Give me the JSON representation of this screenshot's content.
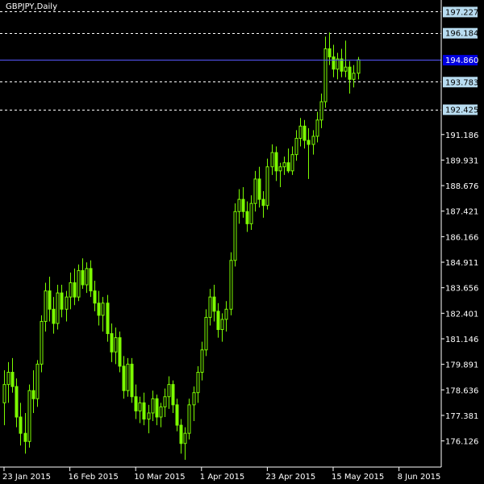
{
  "chart_data": {
    "type": "candlestick",
    "instrument_label": "GBPJPY,Daily",
    "ylim": [
      175.0,
      197.6
    ],
    "y_ticks": [
      "176.126",
      "177.381",
      "178.636",
      "179.891",
      "181.146",
      "182.401",
      "183.656",
      "184.911",
      "186.166",
      "187.421",
      "188.676",
      "189.931",
      "191.186"
    ],
    "x_ticks": [
      {
        "label": "23 Jan 2015",
        "index": 0
      },
      {
        "label": "16 Feb 2015",
        "index": 16
      },
      {
        "label": "10 Mar 2015",
        "index": 32
      },
      {
        "label": "1 Apr 2015",
        "index": 48
      },
      {
        "label": "23 Apr 2015",
        "index": 64
      },
      {
        "label": "15 May 2015",
        "index": 80
      },
      {
        "label": "8 Jun 2015",
        "index": 96
      }
    ],
    "levels": [
      {
        "label": "197.227",
        "value": 197.227
      },
      {
        "label": "196.184",
        "value": 196.184
      },
      {
        "label": "193.783",
        "value": 193.783
      },
      {
        "label": "192.425",
        "value": 192.425
      }
    ],
    "current_price": {
      "label": "194.860",
      "value": 194.86
    },
    "colors": {
      "candle": "#7CFC00",
      "level_line": "#ffffff",
      "level_box": "#b8dcf0",
      "current_line": "#5858ff",
      "current_box": "#0000e0",
      "axis": "#ffffff",
      "background": "#000000"
    },
    "grid": false,
    "candles": [
      [
        178.0,
        179.6,
        176.9,
        178.9
      ],
      [
        178.9,
        180.0,
        178.0,
        179.5
      ],
      [
        179.5,
        180.2,
        178.5,
        178.8
      ],
      [
        178.8,
        179.2,
        176.8,
        177.3
      ],
      [
        177.3,
        178.0,
        175.9,
        176.5
      ],
      [
        176.5,
        177.5,
        175.5,
        176.1
      ],
      [
        176.1,
        178.9,
        175.8,
        178.6
      ],
      [
        178.6,
        179.6,
        177.5,
        178.2
      ],
      [
        178.2,
        180.1,
        177.8,
        179.9
      ],
      [
        179.9,
        182.3,
        179.5,
        182.0
      ],
      [
        182.0,
        183.9,
        181.5,
        183.5
      ],
      [
        183.5,
        184.2,
        182.0,
        182.6
      ],
      [
        182.6,
        183.2,
        181.4,
        181.9
      ],
      [
        181.9,
        183.8,
        181.6,
        183.4
      ],
      [
        183.4,
        183.8,
        182.2,
        182.6
      ],
      [
        182.6,
        183.5,
        182.0,
        183.2
      ],
      [
        183.2,
        184.4,
        182.6,
        183.9
      ],
      [
        183.9,
        184.6,
        182.8,
        183.2
      ],
      [
        183.2,
        184.8,
        183.0,
        184.5
      ],
      [
        184.5,
        185.1,
        183.6,
        183.8
      ],
      [
        183.8,
        184.9,
        183.4,
        184.6
      ],
      [
        184.6,
        185.0,
        183.2,
        183.5
      ],
      [
        183.5,
        184.0,
        182.5,
        182.9
      ],
      [
        182.9,
        183.5,
        181.8,
        182.3
      ],
      [
        182.3,
        183.2,
        181.5,
        182.9
      ],
      [
        182.9,
        183.3,
        181.0,
        181.4
      ],
      [
        181.4,
        181.9,
        180.0,
        180.5
      ],
      [
        180.5,
        181.7,
        179.9,
        181.2
      ],
      [
        181.2,
        181.5,
        179.5,
        179.8
      ],
      [
        179.8,
        180.3,
        178.2,
        178.6
      ],
      [
        178.6,
        180.2,
        178.3,
        179.9
      ],
      [
        179.9,
        180.2,
        178.0,
        178.3
      ],
      [
        178.3,
        178.9,
        177.2,
        177.6
      ],
      [
        177.6,
        178.3,
        177.0,
        178.0
      ],
      [
        178.0,
        178.5,
        176.9,
        177.2
      ],
      [
        177.2,
        177.9,
        176.5,
        177.5
      ],
      [
        177.5,
        178.6,
        177.1,
        178.2
      ],
      [
        178.2,
        178.4,
        176.9,
        177.3
      ],
      [
        177.3,
        178.0,
        176.8,
        177.8
      ],
      [
        177.8,
        178.7,
        177.3,
        178.3
      ],
      [
        178.3,
        179.3,
        177.7,
        178.9
      ],
      [
        178.9,
        179.1,
        177.5,
        177.9
      ],
      [
        177.9,
        178.2,
        176.6,
        176.9
      ],
      [
        176.9,
        177.2,
        175.5,
        176.0
      ],
      [
        176.0,
        176.8,
        175.2,
        176.5
      ],
      [
        176.5,
        178.2,
        176.2,
        177.9
      ],
      [
        177.9,
        178.8,
        177.1,
        178.5
      ],
      [
        178.5,
        179.8,
        178.0,
        179.5
      ],
      [
        179.5,
        181.0,
        179.1,
        180.6
      ],
      [
        180.6,
        182.6,
        180.3,
        182.2
      ],
      [
        182.2,
        183.6,
        181.8,
        183.2
      ],
      [
        183.2,
        183.8,
        182.0,
        182.5
      ],
      [
        182.5,
        182.9,
        181.2,
        181.6
      ],
      [
        181.6,
        182.4,
        181.0,
        182.1
      ],
      [
        182.1,
        183.0,
        181.5,
        182.6
      ],
      [
        182.6,
        185.4,
        182.3,
        185.0
      ],
      [
        185.0,
        187.8,
        184.7,
        187.4
      ],
      [
        187.4,
        188.5,
        186.8,
        188.0
      ],
      [
        188.0,
        188.6,
        187.1,
        187.4
      ],
      [
        187.4,
        187.9,
        186.4,
        186.8
      ],
      [
        186.8,
        188.2,
        186.5,
        187.8
      ],
      [
        187.8,
        189.4,
        187.4,
        189.0
      ],
      [
        189.0,
        189.6,
        187.6,
        188.0
      ],
      [
        188.0,
        188.4,
        187.1,
        187.7
      ],
      [
        187.7,
        190.0,
        187.5,
        189.6
      ],
      [
        189.6,
        190.7,
        189.2,
        190.3
      ],
      [
        190.3,
        190.6,
        188.9,
        189.4
      ],
      [
        189.4,
        189.8,
        188.6,
        189.6
      ],
      [
        189.6,
        190.1,
        189.2,
        189.8
      ],
      [
        189.8,
        190.5,
        189.3,
        189.4
      ],
      [
        189.4,
        190.6,
        189.2,
        190.2
      ],
      [
        190.2,
        191.4,
        189.9,
        191.0
      ],
      [
        191.0,
        192.0,
        190.6,
        191.6
      ],
      [
        191.6,
        191.9,
        190.5,
        190.9
      ],
      [
        190.9,
        191.5,
        189.0,
        190.7
      ],
      [
        190.7,
        191.4,
        190.2,
        191.1
      ],
      [
        191.1,
        192.3,
        190.8,
        191.9
      ],
      [
        191.9,
        193.2,
        191.5,
        192.8
      ],
      [
        192.8,
        196.0,
        192.5,
        195.4
      ],
      [
        195.4,
        196.2,
        194.6,
        195.0
      ],
      [
        195.0,
        195.6,
        194.0,
        194.4
      ],
      [
        194.4,
        195.2,
        193.9,
        194.9
      ],
      [
        194.9,
        195.4,
        194.0,
        194.3
      ],
      [
        194.3,
        195.8,
        194.0,
        194.5
      ],
      [
        194.5,
        194.8,
        193.2,
        193.9
      ],
      [
        193.9,
        194.6,
        193.5,
        194.2
      ],
      [
        194.2,
        195.0,
        193.9,
        194.86
      ]
    ]
  }
}
